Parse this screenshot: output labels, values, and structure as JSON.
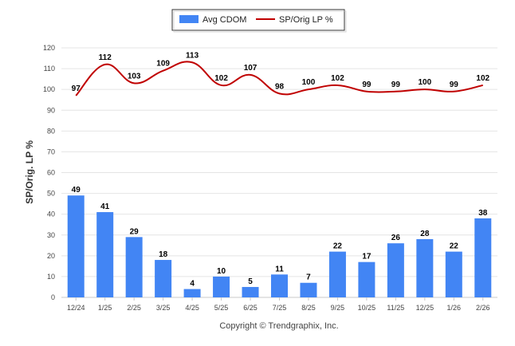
{
  "chart_data": {
    "type": "bar+line",
    "categories": [
      "12/24",
      "1/25",
      "2/25",
      "3/25",
      "4/25",
      "5/25",
      "6/25",
      "7/25",
      "8/25",
      "9/25",
      "10/25",
      "11/25",
      "12/25",
      "1/26",
      "2/26"
    ],
    "series": [
      {
        "name": "Avg CDOM",
        "kind": "bar",
        "values": [
          49,
          41,
          29,
          18,
          4,
          10,
          5,
          11,
          7,
          22,
          17,
          26,
          28,
          22,
          38
        ]
      },
      {
        "name": "SP/Orig LP %",
        "kind": "line",
        "values": [
          97,
          112,
          103,
          109,
          113,
          102,
          107,
          98,
          100,
          102,
          99,
          99,
          100,
          99,
          102
        ]
      }
    ],
    "ylabel": "SP/Orig. LP %",
    "xlabel": "",
    "ylim": [
      0,
      120
    ],
    "yticks": [
      0,
      10,
      20,
      30,
      40,
      50,
      60,
      70,
      80,
      90,
      100,
      110,
      120
    ],
    "grid": true,
    "legend": "top-center",
    "credit": "Copyright © Trendgraphix, Inc.",
    "colors": {
      "bar": "#4285f4",
      "line": "#c00000",
      "grid": "#e4e4e4"
    }
  }
}
